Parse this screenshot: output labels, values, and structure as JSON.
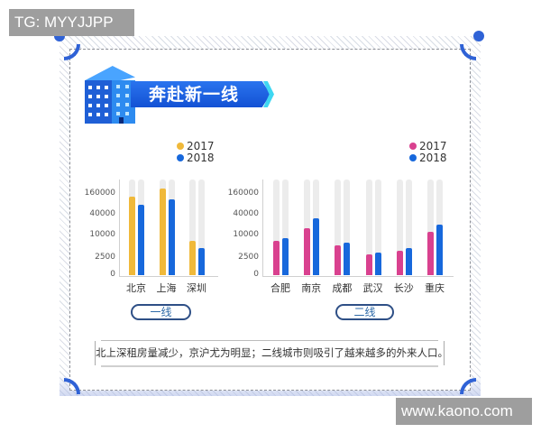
{
  "watermarks": {
    "top_left": "TG: MYYJJPP",
    "bottom_right": "www.kaono.com"
  },
  "banner": {
    "title": "奔赴新一线",
    "icon": "building-icon"
  },
  "colors": {
    "tier1_2017": "#f0b93a",
    "tier2_2017": "#d9418f",
    "series_2018": "#1768dc",
    "track": "#ececec",
    "accent": "#2f62d6"
  },
  "legend": {
    "left": [
      {
        "label": "2017",
        "color": "#f0b93a"
      },
      {
        "label": "2018",
        "color": "#1768dc"
      }
    ],
    "right": [
      {
        "label": "2017",
        "color": "#d9418f"
      },
      {
        "label": "2018",
        "color": "#1768dc"
      }
    ]
  },
  "pills": {
    "tier1": "一线",
    "tier2": "二线"
  },
  "caption": "北上深租房量减少，京沪尤为明显；二线城市则吸引了越来越多的外来人口。",
  "chart_data": [
    {
      "type": "bar",
      "title": "一线",
      "xlabel": "",
      "ylabel": "",
      "scale": "log-like (tick spacing ×4)",
      "yticks": [
        0,
        2500,
        10000,
        40000,
        160000
      ],
      "ytick_labels": [
        "0",
        "2500",
        "10000",
        "40000",
        "160000"
      ],
      "categories": [
        "北京",
        "上海",
        "深圳"
      ],
      "series": [
        {
          "name": "2017",
          "color": "#f0b93a",
          "values": [
            134000,
            230000,
            7200
          ]
        },
        {
          "name": "2018",
          "color": "#1768dc",
          "values": [
            78000,
            111000,
            4600
          ]
        }
      ],
      "legend_position": "top-right",
      "grid": false
    },
    {
      "type": "bar",
      "title": "二线",
      "xlabel": "",
      "ylabel": "",
      "scale": "log-like (tick spacing ×4)",
      "yticks": [
        0,
        2500,
        10000,
        40000,
        160000
      ],
      "ytick_labels": [
        "0",
        "2500",
        "10000",
        "40000",
        "160000"
      ],
      "categories": [
        "合肥",
        "南京",
        "成都",
        "武汉",
        "长沙",
        "重庆"
      ],
      "series": [
        {
          "name": "2017",
          "color": "#d9418f",
          "values": [
            7200,
            16200,
            5400,
            3100,
            3900,
            12700
          ]
        },
        {
          "name": "2018",
          "color": "#1768dc",
          "values": [
            8500,
            31400,
            6400,
            3500,
            4600,
            21200
          ]
        }
      ],
      "legend_position": "top-right",
      "grid": false
    }
  ]
}
